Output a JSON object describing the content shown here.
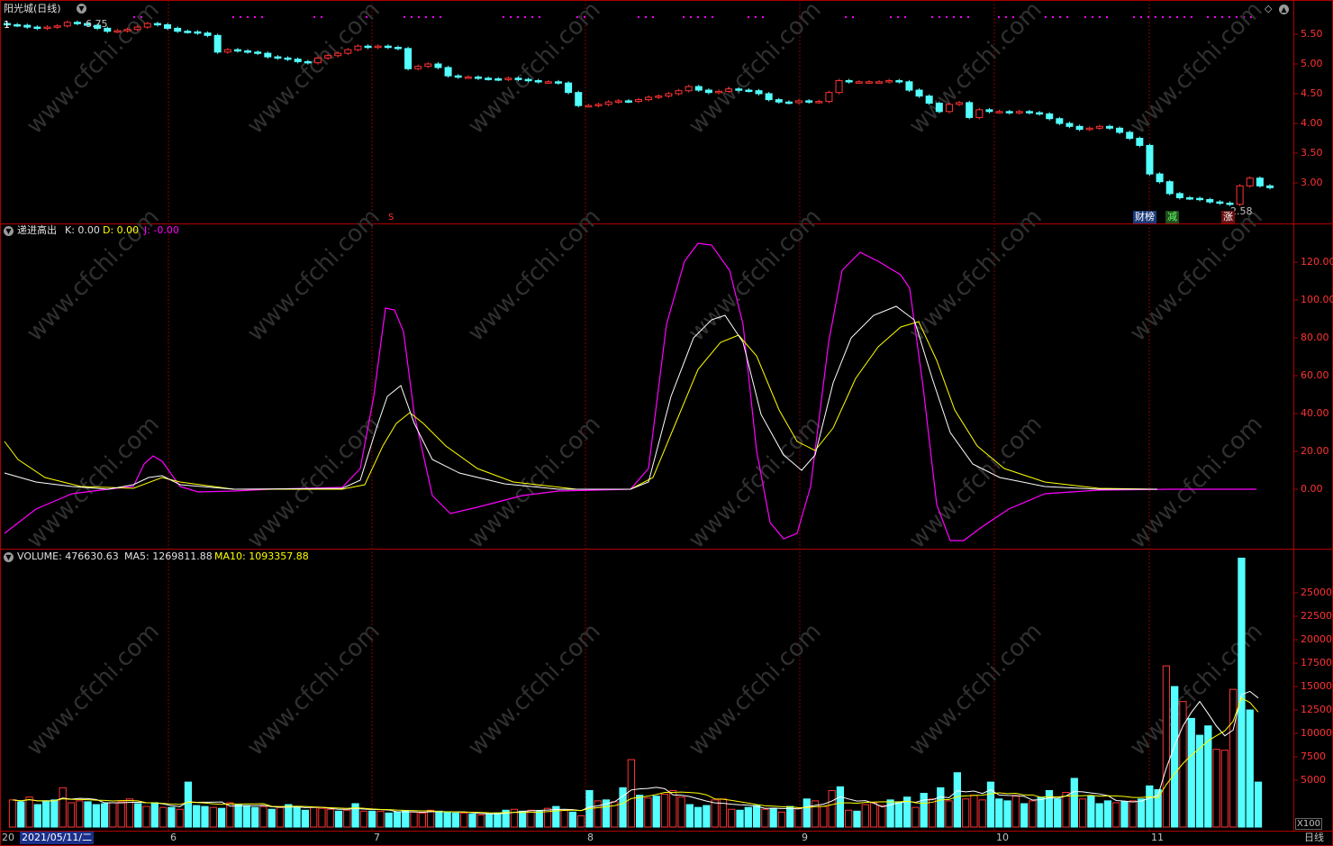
{
  "title": {
    "stock_name": "阳光城",
    "period": "(日线)"
  },
  "price_panel": {
    "high_label": "6.75",
    "low_label": "2.58",
    "axis_ticks": [
      "5.50",
      "5.00",
      "4.50",
      "4.00",
      "3.50",
      "3.00"
    ],
    "axis_ticks_values": [
      5.5,
      5.0,
      4.5,
      4.0,
      3.5,
      3.0
    ],
    "badges": [
      {
        "text": "财榜",
        "color": "#5fa8ff"
      },
      {
        "text": "减",
        "color": "#33dd33"
      },
      {
        "text": "涨",
        "color": "#ff4444"
      }
    ],
    "marker": "S"
  },
  "indicator_panel": {
    "name": "递进高出",
    "k_label": "K: 0.00",
    "d_label": "D: 0.00",
    "j_label": "J: -0.00",
    "axis_ticks": [
      "120.00",
      "100.00",
      "80.00",
      "60.00",
      "40.00",
      "20.00",
      "0.00"
    ]
  },
  "volume_panel": {
    "volume_label": "VOLUME: 476630.63",
    "ma5_label": "MA5: 1269811.88",
    "ma10_label": "MA10: 1093357.88",
    "axis_ticks": [
      "25000",
      "22500",
      "20000",
      "17500",
      "15000",
      "12500",
      "10000",
      "7500",
      "5000"
    ],
    "unit": "X100"
  },
  "x_axis": {
    "cursor_date": "2021/05/11/二",
    "left_stub": "20",
    "months": [
      "6",
      "7",
      "8",
      "9",
      "10",
      "11"
    ],
    "period_label": "日线"
  },
  "colors": {
    "up": "#ff3333",
    "down": "#54ffff",
    "k_line": "#ffffff",
    "d_line": "#ffff00",
    "j_line": "#ff00ff",
    "frame": "#b00000"
  },
  "chart_data": {
    "type": "candlestick",
    "closes": [
      5.66,
      5.65,
      5.62,
      5.6,
      5.62,
      5.64,
      5.7,
      5.68,
      5.65,
      5.6,
      5.55,
      5.56,
      5.58,
      5.62,
      5.68,
      5.66,
      5.6,
      5.55,
      5.54,
      5.52,
      5.48,
      5.2,
      5.24,
      5.22,
      5.2,
      5.18,
      5.12,
      5.1,
      5.08,
      5.04,
      5.02,
      5.1,
      5.14,
      5.18,
      5.24,
      5.3,
      5.28,
      5.3,
      5.28,
      5.26,
      4.92,
      4.96,
      5.0,
      4.94,
      4.8,
      4.78,
      4.78,
      4.76,
      4.75,
      4.74,
      4.76,
      4.74,
      4.72,
      4.7,
      4.7,
      4.68,
      4.52,
      4.3,
      4.3,
      4.32,
      4.36,
      4.38,
      4.37,
      4.4,
      4.44,
      4.46,
      4.5,
      4.55,
      4.62,
      4.56,
      4.52,
      4.54,
      4.58,
      4.56,
      4.55,
      4.5,
      4.4,
      4.36,
      4.35,
      4.38,
      4.36,
      4.37,
      4.52,
      4.72,
      4.7,
      4.7,
      4.7,
      4.7,
      4.72,
      4.7,
      4.56,
      4.46,
      4.34,
      4.2,
      4.32,
      4.35,
      4.1,
      4.23,
      4.2,
      4.2,
      4.18,
      4.2,
      4.18,
      4.16,
      4.08,
      4.0,
      3.95,
      3.9,
      3.92,
      3.95,
      3.92,
      3.85,
      3.75,
      3.63,
      3.15,
      3.02,
      2.82,
      2.75,
      2.74,
      2.72,
      2.68,
      2.66,
      2.64,
      2.95,
      3.08,
      2.95,
      2.92
    ]
  }
}
